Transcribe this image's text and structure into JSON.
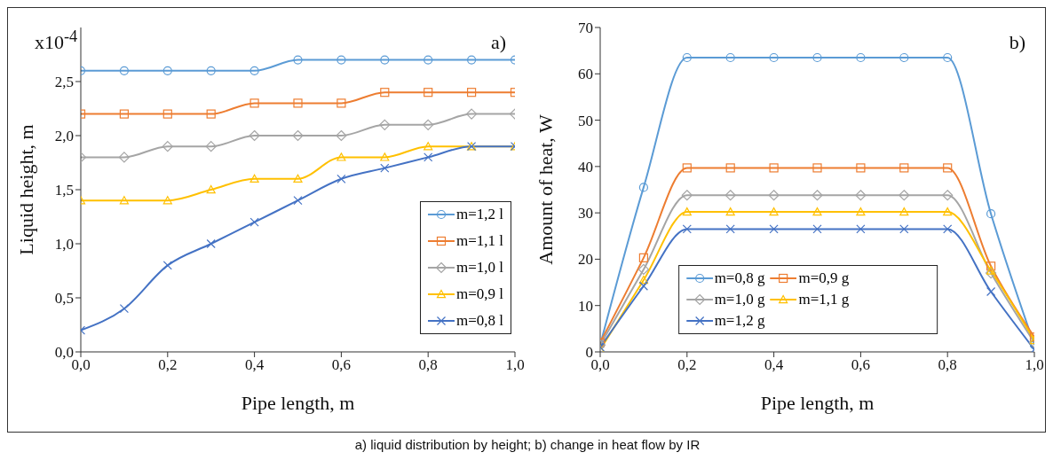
{
  "chart_data": [
    {
      "type": "line",
      "xlabel": "Pipe length, m",
      "ylabel": "Liquid height, m",
      "annotations": [
        "x10$^{-4}$",
        "a)",
        "a) liquid distribution by height; b) change in heat flow by IR"
      ],
      "x": [
        0,
        0.1,
        0.2,
        0.3,
        0.4,
        0.5,
        0.6,
        0.7,
        0.8,
        0.9,
        1.0
      ],
      "xlim": [
        0,
        1
      ],
      "xticks": [
        {
          "value": 0,
          "label": "0,0"
        },
        {
          "value": 0.2,
          "label": "0,2"
        },
        {
          "value": 0.4,
          "label": "0,4"
        },
        {
          "value": 0.6,
          "label": "0,6"
        },
        {
          "value": 0.8,
          "label": "0,8"
        },
        {
          "value": 1,
          "label": "1,0"
        }
      ],
      "ylim": [
        0,
        3
      ],
      "yticks": [
        {
          "value": 0,
          "label": "0,0"
        },
        {
          "value": 0.5,
          "label": "0,5"
        },
        {
          "value": 1,
          "label": "1,0"
        },
        {
          "value": 1.5,
          "label": "1,5"
        },
        {
          "value": 2,
          "label": "2,0"
        },
        {
          "value": 2.5,
          "label": "2,5"
        }
      ],
      "grid": false,
      "legend": "bottom right",
      "series": [
        {
          "name": "m=1,2 l",
          "color": "#5b9bd5",
          "marker": "circle",
          "values": [
            2.6,
            2.6,
            2.6,
            2.6,
            2.6,
            2.7,
            2.7,
            2.7,
            2.7,
            2.7,
            2.7
          ]
        },
        {
          "name": "m=1,1 l",
          "color": "#ed7d31",
          "marker": "square",
          "values": [
            2.2,
            2.2,
            2.2,
            2.2,
            2.3,
            2.3,
            2.3,
            2.4,
            2.4,
            2.4,
            2.4
          ]
        },
        {
          "name": "m=1,0 l",
          "color": "#a5a5a5",
          "marker": "diamond",
          "values": [
            1.8,
            1.8,
            1.9,
            1.9,
            2.0,
            2.0,
            2.0,
            2.1,
            2.1,
            2.2,
            2.2
          ]
        },
        {
          "name": "m=0,9 l",
          "color": "#ffc000",
          "marker": "triangle",
          "values": [
            1.4,
            1.4,
            1.4,
            1.5,
            1.6,
            1.6,
            1.8,
            1.8,
            1.9,
            1.9,
            1.9
          ]
        },
        {
          "name": "m=0,8 l",
          "color": "#4472c4",
          "marker": "cross",
          "values": [
            0.2,
            0.4,
            0.8,
            1.0,
            1.2,
            1.4,
            1.6,
            1.7,
            1.8,
            1.9,
            1.9
          ]
        }
      ]
    },
    {
      "type": "line",
      "xlabel": "Pipe length, m",
      "ylabel": "Amount of heat, W",
      "annotations": [
        "b)"
      ],
      "x": [
        0,
        0.1,
        0.2,
        0.3,
        0.4,
        0.5,
        0.6,
        0.7,
        0.8,
        0.9,
        1.0
      ],
      "xlim": [
        0,
        1
      ],
      "xticks": [
        {
          "value": 0,
          "label": "0,0"
        },
        {
          "value": 0.2,
          "label": "0,2"
        },
        {
          "value": 0.4,
          "label": "0,4"
        },
        {
          "value": 0.6,
          "label": "0,6"
        },
        {
          "value": 0.8,
          "label": "0,8"
        },
        {
          "value": 1,
          "label": "1,0"
        }
      ],
      "ylim": [
        0,
        70
      ],
      "yticks": [
        0,
        10,
        20,
        30,
        40,
        50,
        60,
        70
      ],
      "grid": false,
      "legend": "bottom",
      "series": [
        {
          "name": "m=0,8 g",
          "color": "#5b9bd5",
          "marker": "circle",
          "values": [
            1.5,
            35.5,
            63.5,
            63.5,
            63.5,
            63.5,
            63.5,
            63.5,
            63.5,
            29.8,
            1.5
          ]
        },
        {
          "name": "m=0,9 g",
          "color": "#ed7d31",
          "marker": "square",
          "values": [
            2,
            20.3,
            39.7,
            39.7,
            39.7,
            39.7,
            39.7,
            39.7,
            39.7,
            18.5,
            3.2
          ]
        },
        {
          "name": "m=1,0 g",
          "color": "#a5a5a5",
          "marker": "diamond",
          "values": [
            1.5,
            17.8,
            33.8,
            33.8,
            33.8,
            33.8,
            33.8,
            33.8,
            33.8,
            17,
            2
          ]
        },
        {
          "name": "m=1,1 g",
          "color": "#ffc000",
          "marker": "triangle",
          "values": [
            0.5,
            15.5,
            30.2,
            30.2,
            30.2,
            30.2,
            30.2,
            30.2,
            30.2,
            17.5,
            2.5
          ]
        },
        {
          "name": "m=1,2 g",
          "color": "#4472c4",
          "marker": "cross",
          "values": [
            1,
            14.2,
            26.5,
            26.5,
            26.5,
            26.5,
            26.5,
            26.5,
            26.5,
            13,
            0.5
          ]
        }
      ]
    }
  ]
}
